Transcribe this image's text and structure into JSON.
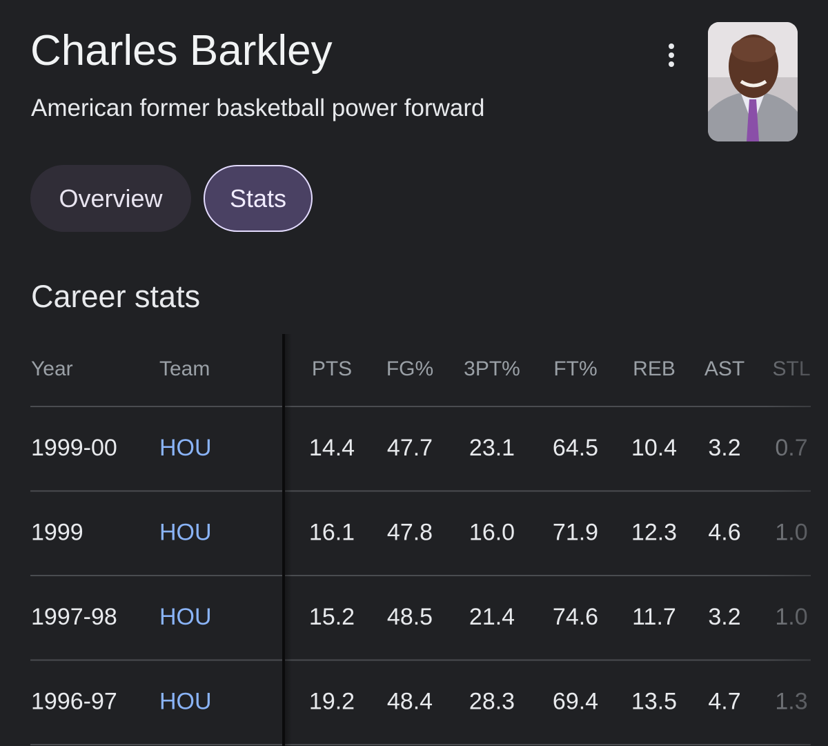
{
  "header": {
    "title": "Charles Barkley",
    "subtitle": "American former basketball power forward"
  },
  "tabs": [
    "Overview",
    "Stats"
  ],
  "section_title": "Career stats",
  "table": {
    "columns": [
      "Year",
      "Team",
      "PTS",
      "FG%",
      "3PT%",
      "FT%",
      "REB",
      "AST",
      "STL"
    ],
    "rows": [
      [
        "1999-00",
        "HOU",
        "14.4",
        "47.7",
        "23.1",
        "64.5",
        "10.4",
        "3.2",
        "0.7"
      ],
      [
        "1999",
        "HOU",
        "16.1",
        "47.8",
        "16.0",
        "71.9",
        "12.3",
        "4.6",
        "1.0"
      ],
      [
        "1997-98",
        "HOU",
        "15.2",
        "48.5",
        "21.4",
        "74.6",
        "11.7",
        "3.2",
        "1.0"
      ],
      [
        "1996-97",
        "HOU",
        "19.2",
        "48.4",
        "28.3",
        "69.4",
        "13.5",
        "4.7",
        "1.3"
      ]
    ]
  }
}
